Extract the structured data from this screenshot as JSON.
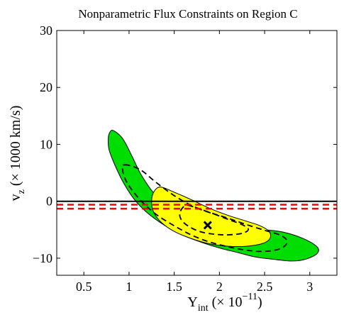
{
  "chart_data": {
    "type": "contour",
    "title": "Nonparametric Flux Constraints on Region C",
    "xlabel": {
      "main": "Y",
      "sub": "int",
      "rest": " (× 10",
      "sup": "−11",
      "close": ")"
    },
    "ylabel": {
      "main": "v",
      "sub": "z",
      "rest": " (× 1000 km/s)"
    },
    "xlim": [
      0.2,
      3.3
    ],
    "ylim": [
      -13,
      30
    ],
    "xticks": [
      0.5,
      1,
      1.5,
      2,
      2.5,
      3
    ],
    "xtick_labels": [
      "0.5",
      "1",
      "1.5",
      "2",
      "2.5",
      "3"
    ],
    "yticks": [
      -10,
      0,
      10,
      20,
      30
    ],
    "ytick_labels": [
      "−10",
      "0",
      "10",
      "20",
      "30"
    ],
    "grid": false,
    "colors": {
      "outer_region": "#00dd00",
      "inner_region": "#ffff00",
      "contour_outline": "#000000",
      "dashed_contour": "#000000",
      "reference_line": "#000000",
      "constraint_lines": "#ff0000"
    },
    "best_fit": {
      "x": 1.87,
      "y": -4.2
    },
    "horizontal_lines": [
      {
        "y": 0,
        "style": "solid",
        "color": "#000000"
      },
      {
        "y": -0.6,
        "style": "dashed",
        "color": "#ff0000"
      },
      {
        "y": -1.3,
        "style": "dashed",
        "color": "#ff0000"
      }
    ],
    "regions": [
      {
        "kind": "outer-filled",
        "points": [
          [
            0.83,
            12.4
          ],
          [
            0.93,
            11.0
          ],
          [
            1.03,
            8.0
          ],
          [
            1.14,
            4.5
          ],
          [
            1.3,
            1.0
          ],
          [
            1.5,
            -1.2
          ],
          [
            1.7,
            -2.6
          ],
          [
            1.9,
            -3.5
          ],
          [
            2.1,
            -4.2
          ],
          [
            2.3,
            -4.7
          ],
          [
            2.5,
            -5.0
          ],
          [
            2.7,
            -5.4
          ],
          [
            2.92,
            -6.5
          ],
          [
            3.08,
            -8.0
          ],
          [
            3.08,
            -9.2
          ],
          [
            2.95,
            -10.2
          ],
          [
            2.8,
            -10.5
          ],
          [
            2.6,
            -10.2
          ],
          [
            2.4,
            -9.8
          ],
          [
            2.2,
            -9.0
          ],
          [
            2.0,
            -8.2
          ],
          [
            1.8,
            -7.2
          ],
          [
            1.6,
            -6.0
          ],
          [
            1.4,
            -4.3
          ],
          [
            1.2,
            -2.0
          ],
          [
            1.05,
            0.5
          ],
          [
            0.93,
            3.5
          ],
          [
            0.84,
            6.5
          ],
          [
            0.78,
            9.0
          ],
          [
            0.77,
            11.0
          ],
          [
            0.79,
            12.2
          ]
        ]
      },
      {
        "kind": "inner-filled",
        "points": [
          [
            1.35,
            2.5
          ],
          [
            1.5,
            1.6
          ],
          [
            1.7,
            0.2
          ],
          [
            1.9,
            -1.3
          ],
          [
            2.1,
            -2.5
          ],
          [
            2.3,
            -3.5
          ],
          [
            2.45,
            -4.3
          ],
          [
            2.55,
            -5.3
          ],
          [
            2.56,
            -6.5
          ],
          [
            2.48,
            -7.4
          ],
          [
            2.3,
            -7.9
          ],
          [
            2.1,
            -7.9
          ],
          [
            1.9,
            -7.5
          ],
          [
            1.7,
            -6.6
          ],
          [
            1.5,
            -5.3
          ],
          [
            1.35,
            -3.6
          ],
          [
            1.27,
            -1.8
          ],
          [
            1.25,
            0.2
          ],
          [
            1.28,
            1.8
          ]
        ]
      },
      {
        "kind": "outer-dashed",
        "points": [
          [
            0.95,
            6.4
          ],
          [
            1.12,
            5.6
          ],
          [
            1.3,
            3.3
          ],
          [
            1.5,
            1.0
          ],
          [
            1.7,
            -0.8
          ],
          [
            1.9,
            -2.0
          ],
          [
            2.1,
            -3.0
          ],
          [
            2.3,
            -4.1
          ],
          [
            2.5,
            -5.1
          ],
          [
            2.68,
            -6.0
          ],
          [
            2.75,
            -7.1
          ],
          [
            2.68,
            -8.3
          ],
          [
            2.5,
            -8.8
          ],
          [
            2.3,
            -8.6
          ],
          [
            2.1,
            -8.0
          ],
          [
            1.9,
            -7.2
          ],
          [
            1.7,
            -6.0
          ],
          [
            1.5,
            -4.3
          ],
          [
            1.3,
            -2.3
          ],
          [
            1.12,
            0.3
          ],
          [
            0.98,
            3.2
          ],
          [
            0.93,
            5.4
          ]
        ]
      },
      {
        "kind": "inner-dashed",
        "points": [
          [
            1.65,
            -0.7
          ],
          [
            1.8,
            -1.5
          ],
          [
            1.95,
            -2.3
          ],
          [
            2.1,
            -3.2
          ],
          [
            2.25,
            -4.1
          ],
          [
            2.32,
            -4.9
          ],
          [
            2.26,
            -5.6
          ],
          [
            2.1,
            -5.9
          ],
          [
            1.95,
            -5.8
          ],
          [
            1.8,
            -5.4
          ],
          [
            1.68,
            -4.6
          ],
          [
            1.59,
            -3.5
          ],
          [
            1.56,
            -2.3
          ],
          [
            1.59,
            -1.2
          ]
        ]
      }
    ]
  }
}
